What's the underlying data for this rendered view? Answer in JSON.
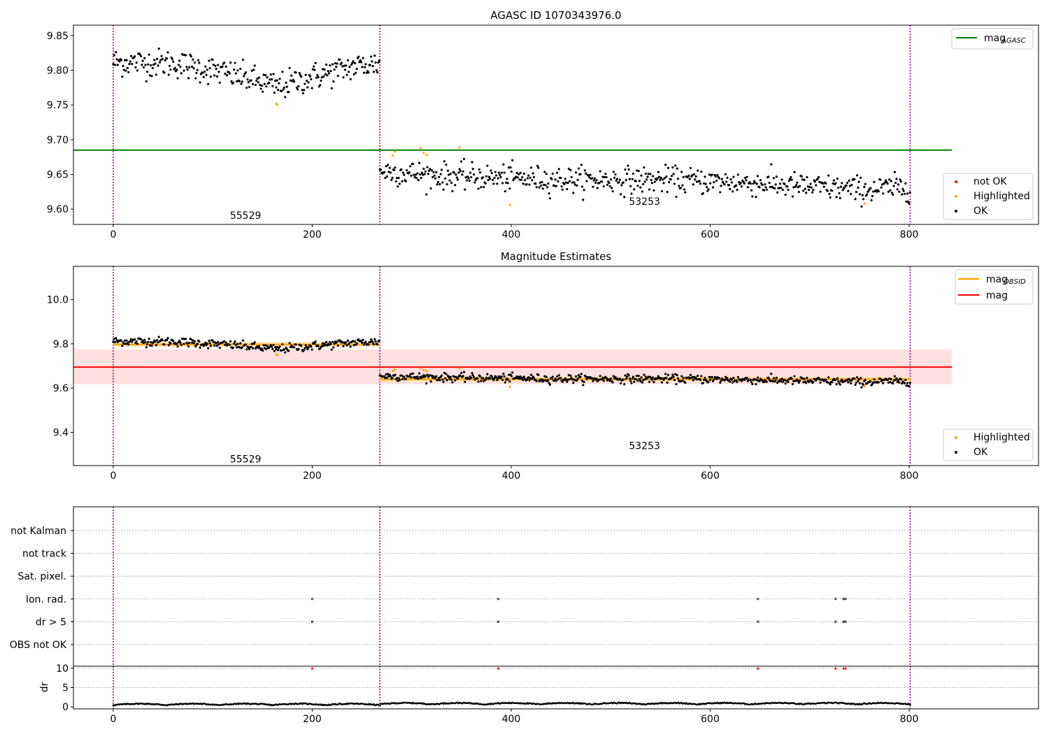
{
  "chart_data": [
    {
      "type": "scatter",
      "title": "AGASC ID 1070343976.0",
      "xlabel": "",
      "ylabel": "",
      "xlim": [
        -40,
        930
      ],
      "ylim": [
        9.578,
        9.865
      ],
      "xticks": [
        "0",
        "200",
        "400",
        "600",
        "800"
      ],
      "yticks": [
        "9.60",
        "9.65",
        "9.70",
        "9.75",
        "9.80",
        "9.85"
      ],
      "vlines": [
        0,
        268,
        801
      ],
      "obsids": [
        {
          "label": "55529",
          "x": 133,
          "y": 9.591
        },
        {
          "label": "53253",
          "x": 534,
          "y": 9.611
        }
      ],
      "hlines": [
        {
          "name": "mag_AGASC",
          "value": 9.685,
          "x_range": [
            -40,
            843
          ],
          "color": "#008000"
        }
      ],
      "legends": {
        "top-right": [
          {
            "label": "mag",
            "sub": "AGASC",
            "color": "#008000",
            "kind": "line"
          }
        ],
        "bottom-right": [
          {
            "label": "not OK",
            "color": "#ff0000",
            "kind": "point"
          },
          {
            "label": "Highlighted",
            "color": "#ffa500",
            "kind": "point"
          },
          {
            "label": "OK",
            "color": "#000000",
            "kind": "point"
          }
        ]
      },
      "segments": [
        {
          "x": [
            0,
            268
          ],
          "mean": 9.808,
          "trend": [
            [
              0,
              9.812
            ],
            [
              60,
              9.81
            ],
            [
              100,
              9.8
            ],
            [
              130,
              9.79
            ],
            [
              165,
              9.776
            ],
            [
              200,
              9.79
            ],
            [
              240,
              9.805
            ],
            [
              268,
              9.81
            ]
          ],
          "scatter": 0.012
        },
        {
          "x": [
            268,
            801
          ],
          "mean": 9.64,
          "trend": [
            [
              268,
              9.655
            ],
            [
              330,
              9.648
            ],
            [
              450,
              9.642
            ],
            [
              560,
              9.642
            ],
            [
              650,
              9.637
            ],
            [
              700,
              9.632
            ],
            [
              760,
              9.628
            ],
            [
              801,
              9.632
            ]
          ],
          "scatter": 0.011
        }
      ],
      "highlighted": [
        [
          164,
          9.752
        ],
        [
          165,
          9.75
        ],
        [
          281,
          9.677
        ],
        [
          283,
          9.683
        ],
        [
          309,
          9.688
        ],
        [
          312,
          9.681
        ],
        [
          315,
          9.678
        ],
        [
          348,
          9.689
        ],
        [
          399,
          9.606
        ],
        [
          755,
          9.608
        ]
      ],
      "not_ok": []
    },
    {
      "type": "scatter",
      "title": "Magnitude Estimates",
      "xlabel": "",
      "ylabel": "",
      "xlim": [
        -40,
        930
      ],
      "ylim": [
        9.25,
        10.15
      ],
      "xticks": [
        "0",
        "200",
        "400",
        "600",
        "800"
      ],
      "yticks": [
        "9.4",
        "9.6",
        "9.8",
        "10.0"
      ],
      "vlines": [
        0,
        268,
        801
      ],
      "obsids": [
        {
          "label": "55529",
          "x": 133,
          "y": 9.28
        },
        {
          "label": "53253",
          "x": 534,
          "y": 9.34
        }
      ],
      "hlines": [
        {
          "name": "mag",
          "value": 9.695,
          "x_range": [
            -40,
            843
          ],
          "color": "#ff0000"
        }
      ],
      "band": {
        "low": 9.618,
        "high": 9.775,
        "x_range": [
          -40,
          843
        ],
        "color": "#ffdfe0"
      },
      "obsid_mag": [
        {
          "x": [
            0,
            268
          ],
          "value": 9.797
        },
        {
          "x": [
            268,
            801
          ],
          "value": 9.64
        }
      ],
      "legends": {
        "top-right": [
          {
            "label": "mag",
            "sub": "OBSID",
            "color": "#ffa500",
            "kind": "line"
          },
          {
            "label": "mag",
            "sub": "",
            "color": "#ff0000",
            "kind": "line"
          }
        ],
        "bottom-right": [
          {
            "label": "Highlighted",
            "color": "#ffa500",
            "kind": "point"
          },
          {
            "label": "OK",
            "color": "#000000",
            "kind": "point"
          }
        ]
      }
    },
    {
      "type": "scatter",
      "title": "",
      "xlabel": "",
      "ylabel": "",
      "xlim": [
        -40,
        930
      ],
      "flag_rows": [
        "not Kalman",
        "not track",
        "Sat. pixel.",
        "Ion. rad.",
        "dr > 5",
        "OBS not OK"
      ],
      "vlines": [
        0,
        268,
        801
      ],
      "flagged_x": [
        200,
        387,
        648,
        726,
        734,
        736
      ],
      "flags": {
        "Ion. rad.": [
          200,
          387,
          648,
          726,
          734,
          736
        ],
        "dr > 5": [
          200,
          387,
          648,
          726,
          734,
          736
        ]
      }
    },
    {
      "type": "scatter",
      "title": "",
      "xlabel": "",
      "ylabel": "dr",
      "xlim": [
        -40,
        930
      ],
      "ylim": [
        -0.5,
        10.5
      ],
      "xticks": [
        "0",
        "200",
        "400",
        "600",
        "800"
      ],
      "yticks": [
        "0",
        "5",
        "10"
      ],
      "vlines": [
        0,
        268,
        801
      ],
      "dr_typical": 0.4,
      "dr_max": 1.4,
      "dr_clipped_at": 10,
      "dr_outliers_x": [
        200,
        387,
        648,
        726,
        734,
        736
      ]
    }
  ],
  "colors": {
    "ok": "#000000",
    "highlighted": "#ffa500",
    "not_ok": "#ff0000",
    "vline": "#800080",
    "grid": "#b0b0b0"
  }
}
